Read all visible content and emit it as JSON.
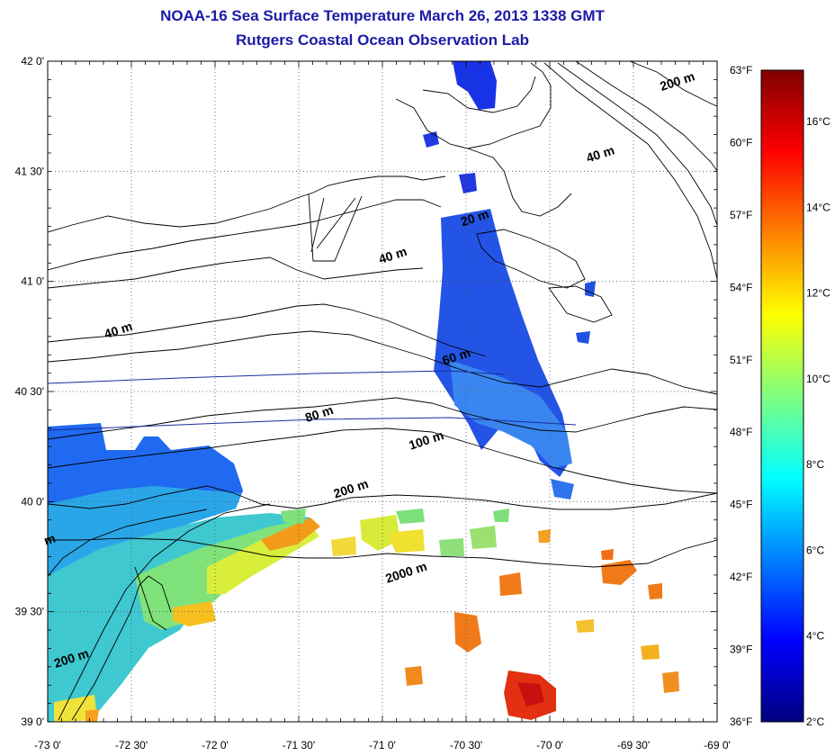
{
  "header": {
    "title": "NOAA-16 Sea Surface Temperature March 26, 2013 1338 GMT",
    "subtitle": "Rutgers Coastal Ocean Observation Lab"
  },
  "map": {
    "lon_labels": [
      "-73 0'",
      "-72 30'",
      "-72 0'",
      "-71 30'",
      "-71 0'",
      "-70 30'",
      "-70 0'",
      "-69 30'",
      "-69 0'"
    ],
    "lat_labels": [
      "42 0'",
      "41 30'",
      "41 0'",
      "40 30'",
      "40 0'",
      "39 30'",
      "39 0'"
    ],
    "lon_range": [
      -73,
      -69
    ],
    "lat_range": [
      39,
      42
    ],
    "contour_labels": [
      {
        "text": "200 m",
        "lon": -69.23,
        "lat": 41.89
      },
      {
        "text": "40 m",
        "lon": -69.69,
        "lat": 41.56
      },
      {
        "text": "20 m",
        "lon": -70.44,
        "lat": 41.27
      },
      {
        "text": "40 m",
        "lon": -70.93,
        "lat": 41.1
      },
      {
        "text": "40 m",
        "lon": -72.57,
        "lat": 40.76
      },
      {
        "text": "60 m",
        "lon": -70.55,
        "lat": 40.64
      },
      {
        "text": "80 m",
        "lon": -71.37,
        "lat": 40.38
      },
      {
        "text": "100 m",
        "lon": -70.73,
        "lat": 40.26
      },
      {
        "text": "200 m",
        "lon": -71.18,
        "lat": 40.04
      },
      {
        "text": "2000 m",
        "lon": -70.85,
        "lat": 39.66
      },
      {
        "text": "200 m",
        "lon": -72.85,
        "lat": 39.27
      },
      {
        "text": "m",
        "lon": -72.98,
        "lat": 39.81
      }
    ]
  },
  "colorbar": {
    "fahrenheit_labels": [
      "63°F",
      "60°F",
      "57°F",
      "54°F",
      "51°F",
      "48°F",
      "45°F",
      "42°F",
      "39°F",
      "36°F"
    ],
    "celsius_labels": [
      "16°C",
      "14°C",
      "12°C",
      "10°C",
      "8°C",
      "6°C",
      "4°C",
      "2°C"
    ],
    "celsius_range": [
      2,
      17.2
    ],
    "colors": [
      "#00007f",
      "#0000ff",
      "#0080ff",
      "#00ffff",
      "#80ff80",
      "#ffff00",
      "#ff8000",
      "#ff0000",
      "#800000"
    ]
  },
  "colors": {
    "title": "#1a1aa8",
    "coastline": "#000000",
    "track_line": "#1a2a9a"
  }
}
